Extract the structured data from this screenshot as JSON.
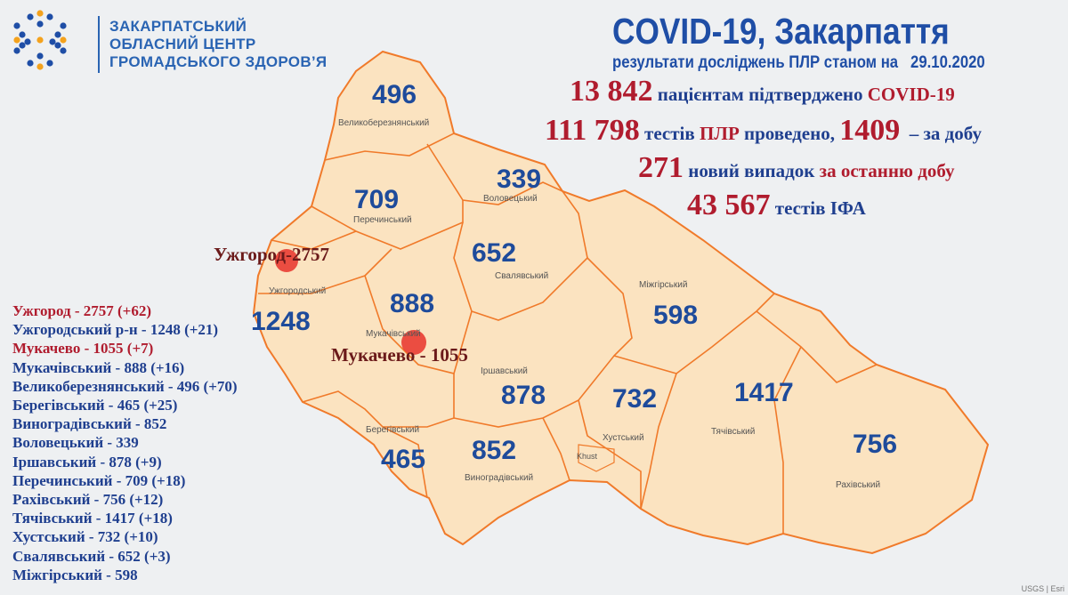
{
  "logo": {
    "lines": [
      "ЗАКАРПАТСЬКИЙ",
      "ОБЛАСНИЙ ЦЕНТР",
      "ГРОМАДСЬКОГО ЗДОРОВ’Я"
    ]
  },
  "header": {
    "title": "COVID-19, Закарпаття",
    "subtitle": "результати досліджень ПЛР станом на",
    "date": "29.10.2020"
  },
  "stats": {
    "confirmed": "13 842",
    "confirmed_text": "пацієнтам підтверджено",
    "confirmed_covid": "COVID-19",
    "tests": "111 798",
    "tests_text1": "тестів",
    "tests_plr": "ПЛР",
    "tests_text2": "проведено,",
    "tests_day": "1409",
    "tests_day_text": "– за добу",
    "new_cases": "271",
    "new_cases_text": "новий випадок",
    "new_cases_text2": "за останню добу",
    "ifa": "43 567",
    "ifa_text": "тестів ІФА"
  },
  "list": [
    {
      "text": "Ужгород - 2757 (+62)",
      "highlight": true
    },
    {
      "text": "Ужгородський р-н - 1248 (+21)",
      "highlight": false
    },
    {
      "text": "Мукачево - 1055 (+7)",
      "highlight": true
    },
    {
      "text": "Мукачівський - 888 (+16)",
      "highlight": false
    },
    {
      "text": "Великоберезнянський - 496 (+70)",
      "highlight": false
    },
    {
      "text": "Берегівський - 465 (+25)",
      "highlight": false
    },
    {
      "text": "Виноградівський - 852",
      "highlight": false
    },
    {
      "text": "Воловецький - 339",
      "highlight": false
    },
    {
      "text": "Іршавський - 878 (+9)",
      "highlight": false
    },
    {
      "text": "Перечинський - 709 (+18)",
      "highlight": false
    },
    {
      "text": "Рахівський - 756 (+12)",
      "highlight": false
    },
    {
      "text": "Тячівський - 1417 (+18)",
      "highlight": false
    },
    {
      "text": "Хустський - 732 (+10)",
      "highlight": false
    },
    {
      "text": "Свалявський - 652 (+3)",
      "highlight": false
    },
    {
      "text": "Міжгірський - 598",
      "highlight": false
    }
  ],
  "districts": [
    {
      "name": "Великоберезнянський",
      "value": "496"
    },
    {
      "name": "Воловецький",
      "value": "339"
    },
    {
      "name": "Перечинський",
      "value": "709"
    },
    {
      "name": "Свалявський",
      "value": "652"
    },
    {
      "name": "Ужгородський",
      "value": "1248"
    },
    {
      "name": "Мукачівський",
      "value": "888"
    },
    {
      "name": "Міжгірський",
      "value": "598"
    },
    {
      "name": "Іршавський",
      "value": "878"
    },
    {
      "name": "Хустський",
      "value": "732"
    },
    {
      "name": "Тячівський",
      "value": "1417"
    },
    {
      "name": "Рахівський",
      "value": "756"
    },
    {
      "name": "Берегівський",
      "value": "465"
    },
    {
      "name": "Виноградівський",
      "value": "852"
    }
  ],
  "cities": [
    {
      "label": "Ужгород-2757"
    },
    {
      "label": "Мукачево - 1055"
    },
    {
      "label": "Khust"
    }
  ],
  "attribution": "USGS | Esri",
  "colors": {
    "region_fill": "#fbe3c0",
    "border": "#f07a2a",
    "blue": "#1f4ea6",
    "red": "#b01c2e",
    "marker": "#e8332a"
  }
}
